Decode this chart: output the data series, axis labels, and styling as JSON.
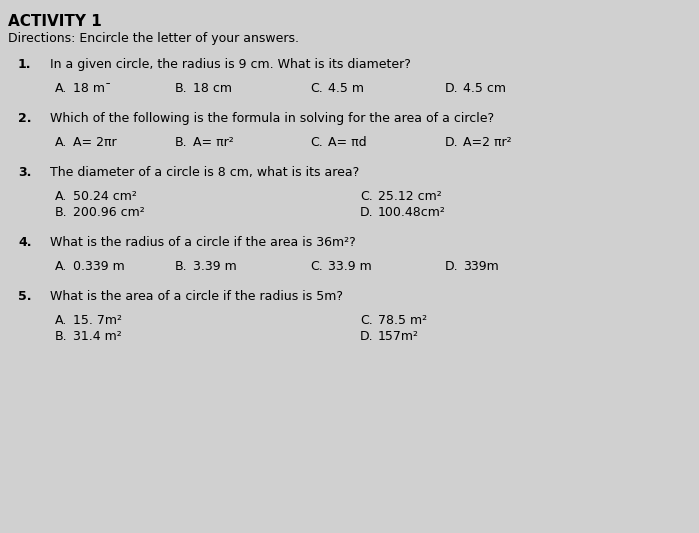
{
  "bg_color": "#d0d0d0",
  "title": "ACTIVITY 1",
  "directions": "Directions: Encircle the letter of your answers.",
  "title_fs": 11,
  "dir_fs": 9,
  "q_fs": 9,
  "choice_fs": 9,
  "questions": [
    {
      "number": "1.",
      "text": "In a given circle, the radius is 9 cm. What is its diameter?",
      "choices_inline": true,
      "choices": [
        {
          "label": "A.",
          "text": "18 mˉ"
        },
        {
          "label": "B.",
          "text": "18 cm"
        },
        {
          "label": "C.",
          "text": "4.5 m"
        },
        {
          "label": "D.",
          "text": "4.5 cm"
        }
      ]
    },
    {
      "number": "2.",
      "text": "Which of the following is the formula in solving for the area of a circle?",
      "choices_inline": true,
      "choices": [
        {
          "label": "A.",
          "text": "A= 2πr"
        },
        {
          "label": "B.",
          "text": "A= πr²"
        },
        {
          "label": "C.",
          "text": "A= πd"
        },
        {
          "label": "D.",
          "text": "A=2 πr²"
        }
      ]
    },
    {
      "number": "3.",
      "text": "The diameter of a circle is 8 cm, what is its area?",
      "choices_inline": false,
      "choices": [
        {
          "label": "A.",
          "text": "50.24 cm²",
          "col": 0
        },
        {
          "label": "B.",
          "text": "200.96 cm²",
          "col": 0
        },
        {
          "label": "C.",
          "text": "25.12 cm²",
          "col": 1
        },
        {
          "label": "D.",
          "text": "100.48cm²",
          "col": 1
        }
      ]
    },
    {
      "number": "4.",
      "text": "What is the radius of a circle if the area is 36m²?",
      "choices_inline": true,
      "choices": [
        {
          "label": "A.",
          "text": "0.339 m"
        },
        {
          "label": "B.",
          "text": "3.39 m"
        },
        {
          "label": "C.",
          "text": "33.9 m"
        },
        {
          "label": "D.",
          "text": "339m"
        }
      ]
    },
    {
      "number": "5.",
      "text": "What is the area of a circle if the radius is 5m?",
      "choices_inline": false,
      "choices": [
        {
          "label": "A.",
          "text": "15. 7m²",
          "col": 0
        },
        {
          "label": "B.",
          "text": "31.4 m²",
          "col": 0
        },
        {
          "label": "C.",
          "text": "78.5 m²",
          "col": 1
        },
        {
          "label": "D.",
          "text": "157m²",
          "col": 1
        }
      ]
    }
  ]
}
